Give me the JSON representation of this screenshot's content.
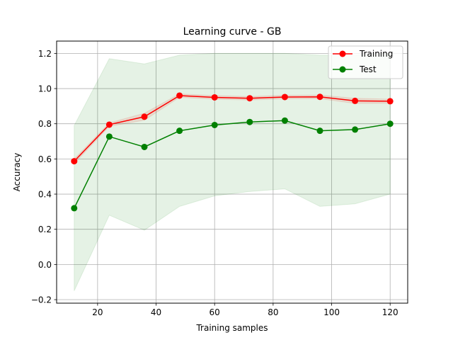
{
  "chart_data": {
    "type": "line",
    "title": "Learning curve - GB",
    "xlabel": "Training samples",
    "ylabel": "Accuracy",
    "xlim": [
      6,
      126
    ],
    "ylim": [
      -0.22,
      1.27
    ],
    "xticks": [
      20,
      40,
      60,
      80,
      100,
      120
    ],
    "yticks": [
      -0.2,
      0.0,
      0.2,
      0.4,
      0.6,
      0.8,
      1.0,
      1.2
    ],
    "grid": true,
    "legend_position": "top-right",
    "x": [
      12,
      24,
      36,
      48,
      60,
      72,
      84,
      96,
      108,
      120
    ],
    "series": [
      {
        "name": "Training",
        "color": "#ff0000",
        "values": [
          0.587,
          0.795,
          0.84,
          0.96,
          0.95,
          0.945,
          0.952,
          0.953,
          0.93,
          0.928
        ],
        "band_upper": [
          0.6,
          0.805,
          0.86,
          0.97,
          0.96,
          0.955,
          0.962,
          0.963,
          0.945,
          0.94
        ],
        "band_lower": [
          0.574,
          0.785,
          0.82,
          0.95,
          0.94,
          0.935,
          0.942,
          0.943,
          0.915,
          0.916
        ]
      },
      {
        "name": "Test",
        "color": "#008000",
        "values": [
          0.32,
          0.727,
          0.668,
          0.76,
          0.793,
          0.81,
          0.818,
          0.76,
          0.767,
          0.8
        ],
        "band_upper": [
          0.79,
          1.17,
          1.14,
          1.19,
          1.2,
          1.2,
          1.2,
          1.19,
          1.19,
          1.2
        ],
        "band_lower": [
          -0.15,
          0.28,
          0.195,
          0.33,
          0.39,
          0.415,
          0.43,
          0.33,
          0.345,
          0.4
        ]
      }
    ]
  }
}
